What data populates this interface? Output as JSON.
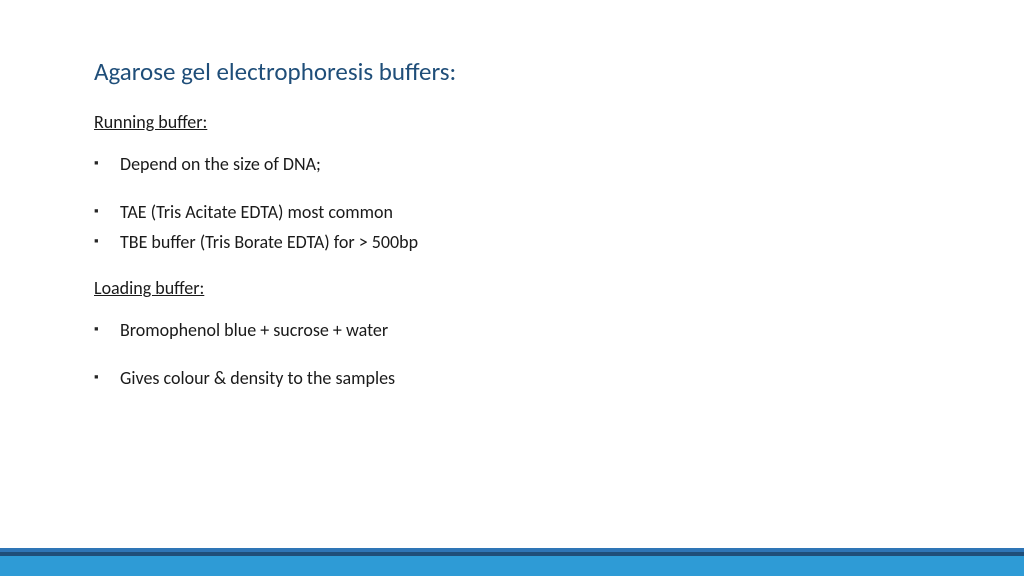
{
  "colors": {
    "title": "#1f4e79",
    "body": "#1a1a1a",
    "bullet": "#262626",
    "footer_top": "#2e75b6",
    "footer_mid": "#1f4e79",
    "footer_main": "#2e9bd6",
    "background": "#ffffff"
  },
  "title": "Agarose gel electrophoresis buffers:",
  "sections": [
    {
      "heading": "Running buffer:",
      "items": [
        {
          "text": "Depend on the size of DNA;",
          "gap_after": true
        },
        {
          "text": "TAE (Tris Acitate EDTA) most common",
          "gap_after": false
        },
        {
          "text": "TBE buffer (Tris Borate EDTA) for > 500bp",
          "gap_after": false
        }
      ]
    },
    {
      "heading": "Loading buffer:",
      "items": [
        {
          "text": "Bromophenol blue + sucrose + water",
          "gap_after": true
        },
        {
          "text": "Gives colour & density to the samples",
          "gap_after": false
        }
      ]
    }
  ],
  "typography": {
    "title_fontsize": 25,
    "body_fontsize": 18,
    "font_family": "Calibri"
  }
}
